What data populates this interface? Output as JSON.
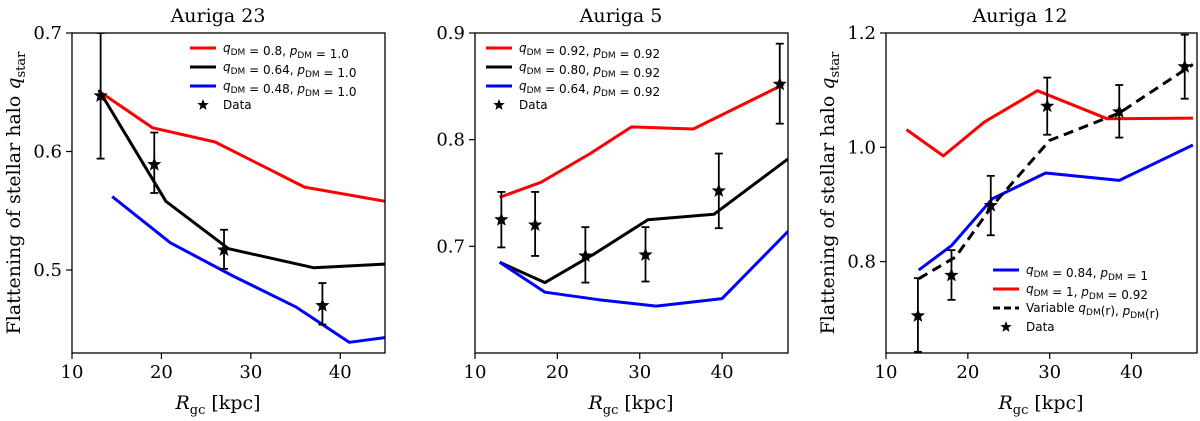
{
  "chart_data": [
    {
      "type": "line",
      "title": "Auriga 23",
      "xlabel": "R_gc [kpc]",
      "ylabel": "Flattening of stellar halo q_star",
      "xlim": [
        10,
        45
      ],
      "ylim": [
        0.43,
        0.7
      ],
      "xticks": [
        "10",
        "20",
        "30",
        "40"
      ],
      "yticks": [
        "0.5",
        "0.6",
        "0.7"
      ],
      "legend_position": "top-right",
      "series": [
        {
          "name": "q_DM = 0.8, p_DM = 1.0",
          "color": "#ff0000",
          "dash": "solid",
          "x": [
            13,
            19,
            26,
            36,
            45
          ],
          "y": [
            0.651,
            0.62,
            0.608,
            0.57,
            0.558
          ]
        },
        {
          "name": "q_DM = 0.64, p_DM = 1.0",
          "color": "#000000",
          "dash": "solid",
          "x": [
            13,
            20.5,
            27.5,
            37,
            45
          ],
          "y": [
            0.652,
            0.558,
            0.518,
            0.502,
            0.505
          ]
        },
        {
          "name": "q_DM = 0.48, p_DM = 1.0",
          "color": "#0000ff",
          "dash": "solid",
          "x": [
            14.5,
            21,
            28,
            35,
            41,
            45
          ],
          "y": [
            0.562,
            0.523,
            0.495,
            0.469,
            0.439,
            0.443
          ]
        }
      ],
      "data_points": {
        "name": "Data",
        "x": [
          13.2,
          19.2,
          27.0,
          38.0
        ],
        "y": [
          0.647,
          0.589,
          0.517,
          0.47
        ],
        "yerr_low": [
          0.053,
          0.024,
          0.016,
          0.016
        ],
        "yerr_high": [
          0.053,
          0.027,
          0.017,
          0.019
        ]
      }
    },
    {
      "type": "line",
      "title": "Auriga 5",
      "xlabel": "R_gc [kpc]",
      "ylabel": "",
      "xlim": [
        10,
        48
      ],
      "ylim": [
        0.6,
        0.9
      ],
      "xticks": [
        "10",
        "20",
        "30",
        "40"
      ],
      "yticks": [
        "0.7",
        "0.8",
        "0.9"
      ],
      "legend_position": "top-left",
      "series": [
        {
          "name": "q_DM = 0.92, p_DM = 0.92",
          "color": "#ff0000",
          "dash": "solid",
          "x": [
            13,
            18,
            24,
            29,
            36.5,
            47.5
          ],
          "y": [
            0.746,
            0.76,
            0.787,
            0.812,
            0.81,
            0.852
          ]
        },
        {
          "name": "q_DM = 0.80, p_DM = 0.92",
          "color": "#000000",
          "dash": "solid",
          "x": [
            13,
            18.5,
            24.5,
            31,
            39,
            48
          ],
          "y": [
            0.685,
            0.666,
            0.693,
            0.725,
            0.73,
            0.782
          ]
        },
        {
          "name": "q_DM = 0.64,  p_DM = 0.92",
          "color": "#0000ff",
          "dash": "solid",
          "x": [
            13,
            18.5,
            25,
            32,
            40,
            48
          ],
          "y": [
            0.685,
            0.657,
            0.65,
            0.644,
            0.651,
            0.714
          ]
        }
      ],
      "data_points": {
        "name": "Data",
        "x": [
          13.2,
          17.3,
          23.4,
          30.7,
          39.6,
          47.0
        ],
        "y": [
          0.725,
          0.72,
          0.691,
          0.692,
          0.752,
          0.852
        ],
        "yerr_low": [
          0.026,
          0.029,
          0.025,
          0.025,
          0.035,
          0.037
        ],
        "yerr_high": [
          0.026,
          0.031,
          0.027,
          0.026,
          0.035,
          0.038
        ]
      }
    },
    {
      "type": "line",
      "title": "Auriga 12",
      "xlabel": "R_gc [kpc]",
      "ylabel": "Flattening of stellar halo q_star",
      "xlim": [
        10,
        48
      ],
      "ylim": [
        0.64,
        1.2
      ],
      "xticks": [
        "10",
        "20",
        "30",
        "40"
      ],
      "yticks": [
        "0.8",
        "1.0",
        "1.2"
      ],
      "legend_position": "bottom-right",
      "series": [
        {
          "name": "q_DM = 0.84, p_DM = 1",
          "color": "#0000ff",
          "dash": "solid",
          "x": [
            14,
            18,
            23,
            29.5,
            38.5,
            47.5
          ],
          "y": [
            0.785,
            0.828,
            0.91,
            0.955,
            0.942,
            1.004
          ]
        },
        {
          "name": "q_DM = 1, p_DM = 0.92",
          "color": "#ff0000",
          "dash": "solid",
          "x": [
            12.5,
            17,
            22,
            28.5,
            37,
            47.5
          ],
          "y": [
            1.031,
            0.985,
            1.044,
            1.099,
            1.05,
            1.051
          ]
        },
        {
          "name": "Variable q_DM(r), p_DM(r)",
          "color": "#000000",
          "dash": "dashed",
          "x": [
            14,
            18.5,
            23,
            30,
            38.5,
            47.5
          ],
          "y": [
            0.77,
            0.808,
            0.898,
            1.012,
            1.06,
            1.145
          ]
        }
      ],
      "data_points": {
        "name": "Data",
        "x": [
          13.9,
          18.0,
          22.8,
          29.7,
          38.5,
          46.5
        ],
        "y": [
          0.705,
          0.776,
          0.898,
          1.072,
          1.062,
          1.141
        ],
        "yerr_low": [
          0.063,
          0.043,
          0.052,
          0.05,
          0.045,
          0.056
        ],
        "yerr_high": [
          0.066,
          0.044,
          0.052,
          0.05,
          0.047,
          0.056
        ]
      }
    }
  ]
}
